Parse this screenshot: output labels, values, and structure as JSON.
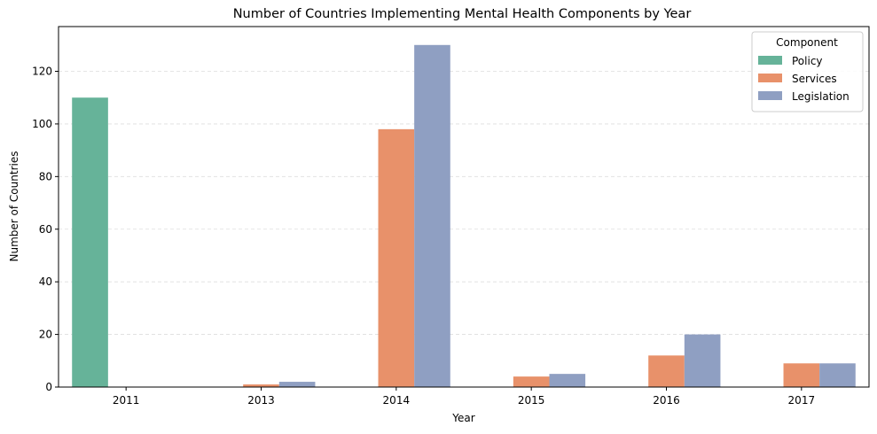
{
  "chart_data": {
    "type": "bar",
    "title": "Number of Countries Implementing Mental Health Components by Year",
    "xlabel": "Year",
    "ylabel": "Number of Countries",
    "categories": [
      "2011",
      "2013",
      "2014",
      "2015",
      "2016",
      "2017"
    ],
    "series": [
      {
        "name": "Policy",
        "color": "#66b399",
        "values": [
          110,
          0,
          0,
          0,
          0,
          0
        ]
      },
      {
        "name": "Services",
        "color": "#e8916a",
        "values": [
          0,
          1,
          98,
          4,
          12,
          9
        ]
      },
      {
        "name": "Legislation",
        "color": "#8f9fc2",
        "values": [
          0,
          2,
          130,
          5,
          20,
          9
        ]
      }
    ],
    "ylim": [
      0,
      137
    ],
    "yticks": [
      0,
      20,
      40,
      60,
      80,
      100,
      120
    ],
    "grid": true,
    "legend": {
      "title": "Component",
      "position": "top-right"
    }
  }
}
